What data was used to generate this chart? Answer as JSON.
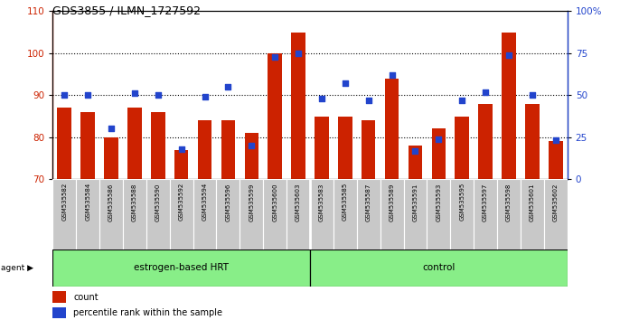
{
  "title": "GDS3855 / ILMN_1727592",
  "samples": [
    "GSM535582",
    "GSM535584",
    "GSM535586",
    "GSM535588",
    "GSM535590",
    "GSM535592",
    "GSM535594",
    "GSM535596",
    "GSM535599",
    "GSM535600",
    "GSM535603",
    "GSM535583",
    "GSM535585",
    "GSM535587",
    "GSM535589",
    "GSM535591",
    "GSM535593",
    "GSM535595",
    "GSM535597",
    "GSM535598",
    "GSM535601",
    "GSM535602"
  ],
  "bar_values": [
    87,
    86,
    80,
    87,
    86,
    77,
    84,
    84,
    81,
    100,
    105,
    85,
    85,
    84,
    94,
    78,
    82,
    85,
    88,
    105,
    88,
    79
  ],
  "dot_values": [
    50,
    50,
    30,
    51,
    50,
    18,
    49,
    55,
    20,
    73,
    75,
    48,
    57,
    47,
    62,
    17,
    24,
    47,
    52,
    74,
    50,
    23
  ],
  "group1_label": "estrogen-based HRT",
  "group2_label": "control",
  "group1_count": 11,
  "group2_count": 11,
  "bar_color": "#cc2200",
  "dot_color": "#2244cc",
  "ylim_left": [
    70,
    110
  ],
  "ylim_right": [
    0,
    100
  ],
  "yticks_left": [
    70,
    80,
    90,
    100,
    110
  ],
  "yticks_right": [
    0,
    25,
    50,
    75,
    100
  ],
  "ytick_labels_right": [
    "0",
    "25",
    "50",
    "75",
    "100%"
  ],
  "group_bg_color": "#88ee88",
  "sample_bg_color": "#c8c8c8",
  "legend_count_label": "count",
  "legend_pct_label": "percentile rank within the sample",
  "agent_label": "agent"
}
